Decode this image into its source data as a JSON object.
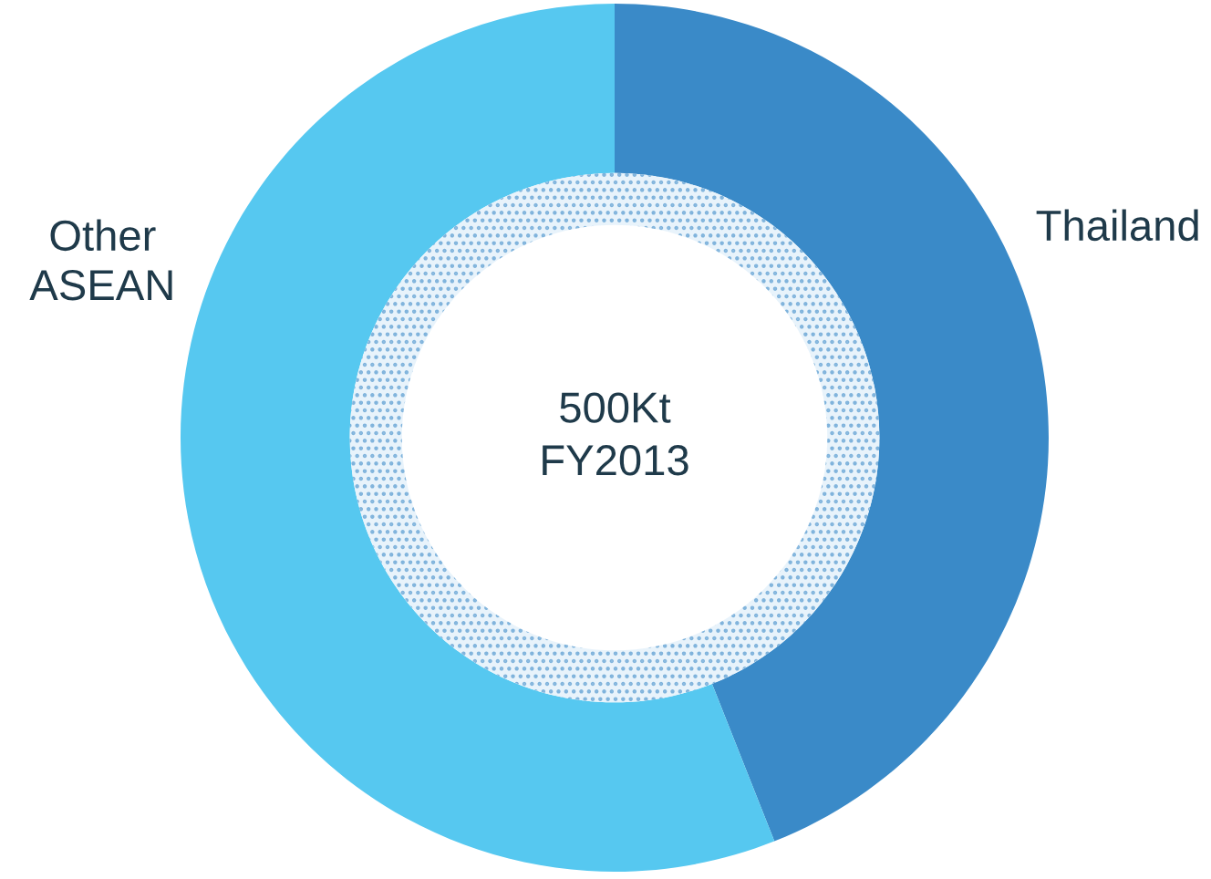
{
  "chart_data": {
    "type": "donut",
    "categories": [
      "Thailand",
      "Other\nASEAN"
    ],
    "values": [
      44,
      56
    ],
    "colors": [
      "#3a8ac8",
      "#56c8f0"
    ],
    "annotations": [
      "500Kt\nFY2013"
    ],
    "legend": false
  }
}
